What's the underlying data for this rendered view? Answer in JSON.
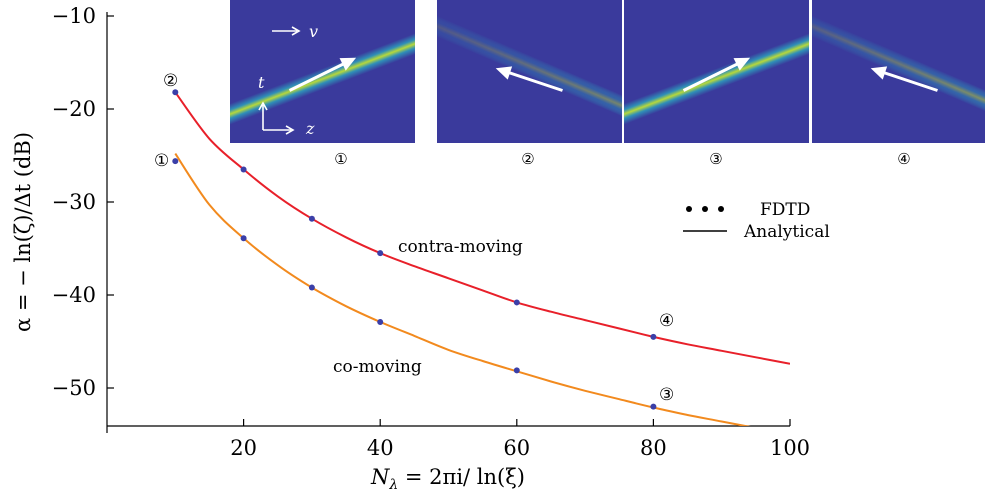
{
  "chart_data": {
    "type": "line",
    "xlabel": "Nλ = 2πi/ ln(ξ)",
    "xlabel_main": "N",
    "xlabel_sub": "λ",
    "xlabel_rest": " = 2πi/ ln(ξ)",
    "ylabel": "α = − ln(ζ)/Δt (dB)",
    "xlim": [
      0,
      100
    ],
    "ylim": [
      -54.5,
      -10
    ],
    "x_ticks": [
      20,
      40,
      60,
      80,
      100
    ],
    "y_ticks": [
      -10,
      -20,
      -30,
      -40,
      -50
    ],
    "x_tick_labels": [
      "20",
      "40",
      "60",
      "80",
      "100"
    ],
    "y_tick_labels": [
      "−10",
      "−20",
      "−30",
      "−40",
      "−50"
    ],
    "series": [
      {
        "name": "contra-moving",
        "color": "#e8202a",
        "fdtd_x": [
          10,
          20,
          30,
          40,
          60,
          80
        ],
        "fdtd_y": [
          -18.2,
          -26.5,
          -31.8,
          -35.5,
          -40.8,
          -44.5
        ],
        "analytical_x": [
          10,
          15,
          20,
          25,
          30,
          35,
          40,
          45,
          50,
          55,
          60,
          65,
          70,
          75,
          80,
          85,
          90,
          95,
          100
        ],
        "analytical_y": [
          -18.2,
          -23.2,
          -26.5,
          -29.4,
          -31.8,
          -33.8,
          -35.5,
          -36.9,
          -38.2,
          -39.5,
          -40.8,
          -41.8,
          -42.7,
          -43.6,
          -44.5,
          -45.3,
          -46.0,
          -46.7,
          -47.4
        ]
      },
      {
        "name": "co-moving",
        "color": "#f28a1e",
        "fdtd_x": [
          10,
          20,
          30,
          40,
          60,
          80
        ],
        "fdtd_y": [
          -25.6,
          -33.9,
          -39.2,
          -42.9,
          -48.1,
          -52.0
        ],
        "analytical_x": [
          10,
          15,
          20,
          25,
          30,
          35,
          40,
          45,
          50,
          55,
          60,
          65,
          70,
          75,
          80,
          85,
          90,
          95,
          100
        ],
        "analytical_y": [
          -24.8,
          -30.3,
          -33.9,
          -36.8,
          -39.2,
          -41.2,
          -42.9,
          -44.4,
          -45.9,
          -47.1,
          -48.2,
          -49.3,
          -50.3,
          -51.2,
          -52.1,
          -52.9,
          -53.6,
          -54.3,
          -55.0
        ]
      }
    ],
    "curve_labels": [
      "contra-moving",
      "co-moving"
    ],
    "legend": {
      "position": "right",
      "fdtd_label": "FDTD",
      "analytical_label": "Analytical"
    },
    "point_markers": {
      "m1": "①",
      "m2": "②",
      "m3": "③",
      "m4": "④"
    },
    "fdtd_marker_color": "#3b3fa8",
    "insets": {
      "labels": [
        "①",
        "②",
        "③",
        "④"
      ],
      "v_label": "v",
      "t_label": "t",
      "z_label": "z",
      "background_color": "#3a3a9c",
      "beam_directions": [
        "up-right",
        "up-left",
        "up-right",
        "up-left"
      ],
      "beam_strengths": [
        1.0,
        0.5,
        1.0,
        0.6
      ]
    },
    "grid": false
  }
}
